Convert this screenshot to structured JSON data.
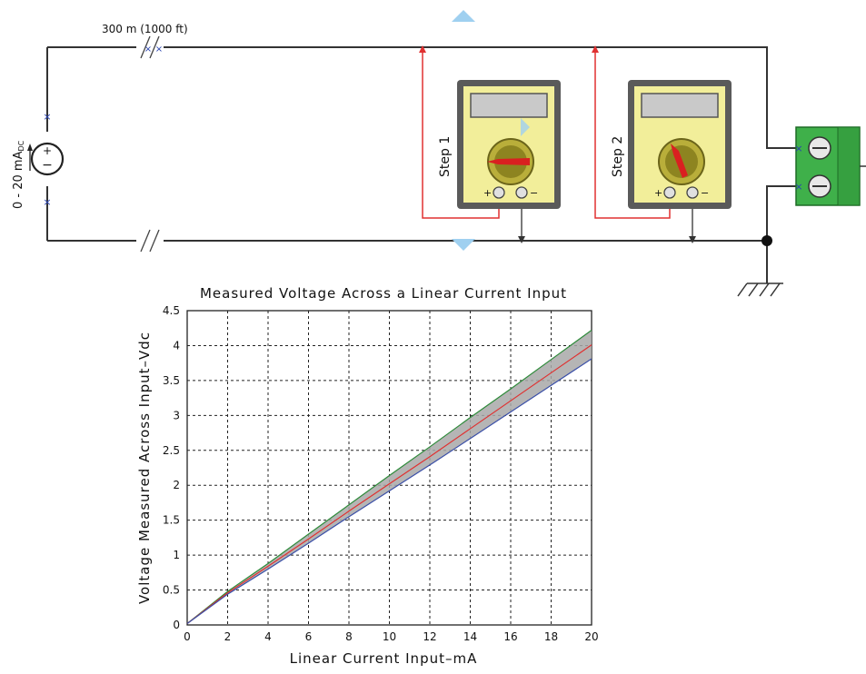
{
  "circuit": {
    "cable_label": "300 m (1000 ft)",
    "source_label": "0 - 20 mA",
    "source_unit_suffix": "DC",
    "step1_label": "Step 1",
    "step2_label": "Step 2",
    "colors": {
      "wire": "#333333",
      "measure_wire": "#e03030",
      "meter_body": "#f2ee9a",
      "meter_frame": "#555555",
      "terminal_block": "#3fb04a",
      "arrow": "#9fd0f0"
    }
  },
  "chart": {
    "title": "Measured Voltage Across a Linear Current Input",
    "xlabel": "Linear Current Input–mA",
    "ylabel": "Voltage Measured Across Input–Vdc",
    "xticks": [
      "0",
      "2",
      "4",
      "6",
      "8",
      "10",
      "12",
      "14",
      "16",
      "18",
      "20"
    ],
    "yticks": [
      "0",
      "0.5",
      "1",
      "1.5",
      "2",
      "2.5",
      "3",
      "3.5",
      "4",
      "4.5"
    ]
  },
  "chart_data": {
    "type": "line",
    "title": "Measured Voltage Across a Linear Current Input",
    "xlabel": "Linear Current Input–mA",
    "ylabel": "Voltage Measured Across Input–Vdc",
    "xlim": [
      0,
      20
    ],
    "ylim": [
      0,
      4.5
    ],
    "grid": true,
    "x": [
      0,
      2,
      4,
      6,
      8,
      10,
      12,
      14,
      16,
      18,
      20
    ],
    "series": [
      {
        "color": "#2e8b3a",
        "values": [
          0.02,
          0.48,
          0.88,
          1.3,
          1.72,
          2.14,
          2.55,
          2.97,
          3.38,
          3.8,
          4.22
        ]
      },
      {
        "color": "#e03030",
        "values": [
          0.02,
          0.46,
          0.84,
          1.23,
          1.63,
          2.02,
          2.41,
          2.81,
          3.21,
          3.61,
          4.01
        ]
      },
      {
        "color": "#3a4fa8",
        "values": [
          0.02,
          0.44,
          0.8,
          1.17,
          1.55,
          1.92,
          2.29,
          2.67,
          3.05,
          3.43,
          3.81
        ]
      }
    ],
    "band_fill": "#a8a8a8"
  }
}
